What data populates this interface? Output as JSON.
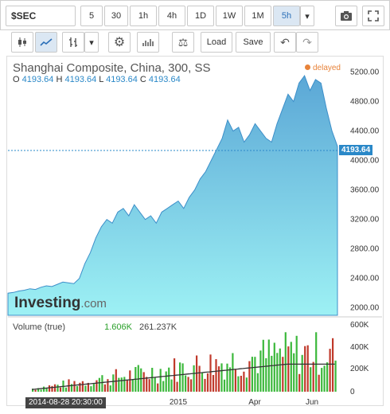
{
  "toolbar": {
    "symbol": "$SEC",
    "intervals": [
      "5",
      "30",
      "1h",
      "4h",
      "1D",
      "1W",
      "1M",
      "5h"
    ],
    "active_interval": "5h",
    "load_label": "Load",
    "save_label": "Save"
  },
  "chart": {
    "title": "Shanghai Composite, China, 300, SS",
    "status": "delayed",
    "ohlc": {
      "o_label": "O",
      "o": "4193.64",
      "h_label": "H",
      "h": "4193.64",
      "l_label": "L",
      "l": "4193.64",
      "c_label": "C",
      "c": "4193.64"
    },
    "last_price": "4193.64",
    "price_ticks": [
      "5200.00",
      "4800.00",
      "4400.00",
      "4000.00",
      "3600.00",
      "3200.00",
      "2800.00",
      "2400.00",
      "2000.00"
    ],
    "volume_label": "Volume (true)",
    "volume_value_1": "1.606K",
    "volume_value_2": "261.237K",
    "volume_ticks": [
      "600K",
      "400K",
      "200K",
      "0"
    ],
    "x_ticks": [
      "2015",
      "Apr",
      "Jun"
    ],
    "crosshair_date": "2014-08-28 20:30:00",
    "logo_main": "Investing",
    "logo_suffix": ".com",
    "colors": {
      "area_top": "#5ba7d6",
      "area_bottom": "#9df1f4",
      "vol_up": "#3cb83c",
      "vol_down": "#c0392b"
    }
  },
  "chart_data": {
    "type": "area",
    "series": [
      {
        "name": "Shanghai Composite",
        "values": [
          2200,
          2210,
          2230,
          2240,
          2260,
          2250,
          2280,
          2300,
          2290,
          2320,
          2350,
          2340,
          2330,
          2400,
          2600,
          2750,
          2950,
          3100,
          3200,
          3150,
          3300,
          3350,
          3250,
          3400,
          3300,
          3200,
          3250,
          3150,
          3300,
          3350,
          3400,
          3450,
          3350,
          3500,
          3600,
          3750,
          3850,
          4000,
          4150,
          4300,
          4550,
          4400,
          4450,
          4250,
          4350,
          4500,
          4400,
          4300,
          4250,
          4500,
          4700,
          4900,
          4800,
          5050,
          5150,
          4950,
          5100,
          5050,
          4700,
          4400,
          4193.64
        ]
      }
    ],
    "ylim": [
      1900,
      5400
    ]
  }
}
